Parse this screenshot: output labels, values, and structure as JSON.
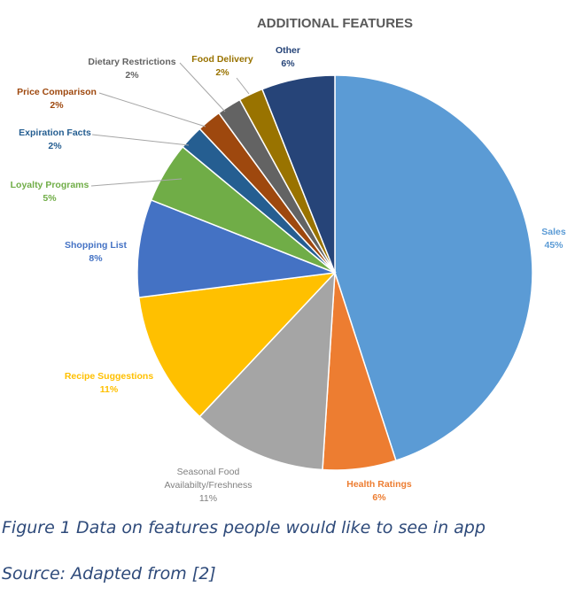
{
  "chart_data": {
    "type": "pie",
    "title": "ADDITIONAL FEATURES",
    "slices": [
      {
        "label": "Sales",
        "value": 45,
        "pct_label": "45%",
        "color": "#5b9bd5"
      },
      {
        "label": "Health Ratings",
        "value": 6,
        "pct_label": "6%",
        "color": "#ed7d31"
      },
      {
        "label": "Seasonal Food Availabilty/Freshness",
        "label_lines": [
          "Seasonal Food",
          "Availabilty/Freshness"
        ],
        "value": 11,
        "pct_label": "11%",
        "color": "#a5a5a5"
      },
      {
        "label": "Recipe Suggestions",
        "value": 11,
        "pct_label": "11%",
        "color": "#ffc000"
      },
      {
        "label": "Shopping List",
        "value": 8,
        "pct_label": "8%",
        "color": "#4472c4"
      },
      {
        "label": "Loyalty Programs",
        "value": 5,
        "pct_label": "5%",
        "color": "#70ad47"
      },
      {
        "label": "Expiration Facts",
        "value": 2,
        "pct_label": "2%",
        "color": "#255e91"
      },
      {
        "label": "Price Comparison",
        "value": 2,
        "pct_label": "2%",
        "color": "#9e480e"
      },
      {
        "label": "Dietary Restrictions",
        "value": 2,
        "pct_label": "2%",
        "color": "#636363"
      },
      {
        "label": "Food Delivery",
        "value": 2,
        "pct_label": "2%",
        "color": "#997300"
      },
      {
        "label": "Other",
        "value": 6,
        "pct_label": "6%",
        "color": "#264478"
      }
    ]
  },
  "captions": {
    "figure": "Figure 1 Data on features people would like to see in app",
    "source": "Source: Adapted from [2]"
  }
}
